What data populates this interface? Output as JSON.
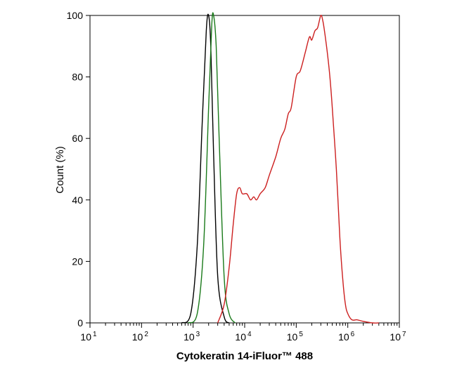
{
  "chart_data": {
    "type": "line",
    "title": "",
    "xlabel": "Cytokeratin 14-iFluor™ 488",
    "ylabel": "Count  (%)",
    "x_scale": "log",
    "xlim": [
      10,
      10000000
    ],
    "ylim": [
      0,
      100
    ],
    "x_ticks": [
      {
        "value": 10,
        "base": "10",
        "exp": "1"
      },
      {
        "value": 100,
        "base": "10",
        "exp": "2"
      },
      {
        "value": 1000,
        "base": "10",
        "exp": "3"
      },
      {
        "value": 10000,
        "base": "10",
        "exp": "4"
      },
      {
        "value": 100000,
        "base": "10",
        "exp": "5"
      },
      {
        "value": 1000000,
        "base": "10",
        "exp": "6"
      },
      {
        "value": 10000000,
        "base": "10",
        "exp": "7"
      }
    ],
    "y_ticks": [
      0,
      20,
      40,
      60,
      80,
      100
    ],
    "grid": false,
    "legend": "none",
    "series": [
      {
        "color": "#000000",
        "x": [
          600,
          900,
          1200,
          1500,
          1800,
          2000,
          2200,
          2500,
          3000,
          4000,
          5000
        ],
        "y": [
          0,
          3,
          25,
          65,
          95,
          100,
          90,
          55,
          15,
          2,
          0
        ]
      },
      {
        "color": "#1a7a1a",
        "x": [
          800,
          1200,
          1600,
          2000,
          2300,
          2500,
          2800,
          3200,
          4000,
          5000,
          6500
        ],
        "y": [
          0,
          3,
          25,
          70,
          97,
          100,
          90,
          60,
          15,
          3,
          0
        ]
      },
      {
        "color": "#cc1f1f",
        "x": [
          3000,
          4000,
          5000,
          6000,
          7000,
          8000,
          9000,
          11000,
          13000,
          15000,
          17000,
          20000,
          25000,
          30000,
          40000,
          50000,
          60000,
          70000,
          80000,
          100000,
          120000,
          150000,
          180000,
          200000,
          230000,
          260000,
          300000,
          330000,
          360000,
          400000,
          450000,
          500000,
          600000,
          700000,
          800000,
          900000,
          1000000,
          1200000,
          1500000,
          2000000,
          3000000,
          4000000
        ],
        "y": [
          0,
          6,
          18,
          32,
          42,
          44,
          42,
          42,
          40,
          41,
          40,
          42,
          44,
          48,
          54,
          60,
          63,
          68,
          70,
          80,
          82,
          88,
          93,
          92,
          95,
          96,
          100,
          98,
          94,
          88,
          80,
          70,
          50,
          28,
          14,
          6,
          3,
          1,
          1,
          0.5,
          0,
          0
        ]
      }
    ]
  }
}
